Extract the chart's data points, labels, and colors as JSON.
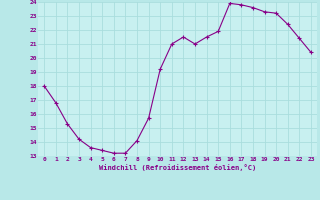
{
  "x": [
    0,
    1,
    2,
    3,
    4,
    5,
    6,
    7,
    8,
    9,
    10,
    11,
    12,
    13,
    14,
    15,
    16,
    17,
    18,
    19,
    20,
    21,
    22,
    23
  ],
  "y": [
    18.0,
    16.8,
    15.3,
    14.2,
    13.6,
    13.4,
    13.2,
    13.2,
    14.1,
    15.7,
    19.2,
    21.0,
    21.5,
    21.0,
    21.5,
    21.9,
    23.9,
    23.8,
    23.6,
    23.3,
    23.2,
    22.4,
    21.4,
    20.4
  ],
  "line_color": "#880088",
  "marker_color": "#880088",
  "bg_color": "#b8e8e8",
  "plot_bg_color": "#c8f0f0",
  "grid_color": "#aadddd",
  "xlabel": "Windchill (Refroidissement éolien,°C)",
  "xlabel_color": "#880088",
  "tick_color": "#880088",
  "ylim": [
    13,
    24
  ],
  "yticks": [
    13,
    14,
    15,
    16,
    17,
    18,
    19,
    20,
    21,
    22,
    23,
    24
  ],
  "xticks": [
    0,
    1,
    2,
    3,
    4,
    5,
    6,
    7,
    8,
    9,
    10,
    11,
    12,
    13,
    14,
    15,
    16,
    17,
    18,
    19,
    20,
    21,
    22,
    23
  ],
  "xtick_labels": [
    "0",
    "1",
    "2",
    "3",
    "4",
    "5",
    "6",
    "7",
    "8",
    "9",
    "10",
    "11",
    "12",
    "13",
    "14",
    "15",
    "16",
    "17",
    "18",
    "19",
    "20",
    "21",
    "22",
    "23"
  ]
}
